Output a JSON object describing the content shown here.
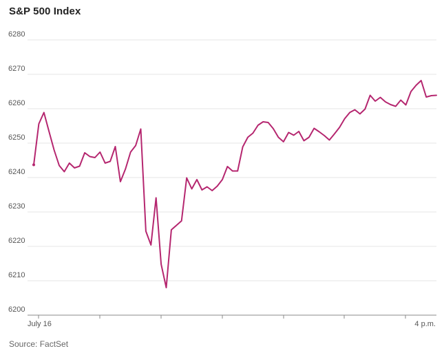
{
  "title": "S&P 500 Index",
  "source": "Source: FactSet",
  "colors": {
    "line": "#b5266f",
    "grid": "#e6e6e6",
    "axis": "#888888",
    "text": "#555555"
  },
  "chart_data": {
    "type": "line",
    "title": "S&P 500 Index",
    "xlabel": "",
    "ylabel": "",
    "ylim": [
      6200,
      6280
    ],
    "yticks": [
      6200,
      6210,
      6220,
      6230,
      6240,
      6250,
      6260,
      6270,
      6280
    ],
    "x_tick_labels": [
      "July 16",
      "4 p.m."
    ],
    "grid": true,
    "legend": "none",
    "series": [
      {
        "values": [
          6243.7,
          6255.6,
          6258.9,
          6253.4,
          6248,
          6243.5,
          6241.7,
          6244.2,
          6242.8,
          6243.3,
          6247.2,
          6246.1,
          6245.8,
          6247.4,
          6244.2,
          6244.7,
          6249,
          6238.8,
          6242.5,
          6247.4,
          6249.3,
          6254.1,
          6224.4,
          6220.4,
          6234.1,
          6214.8,
          6208,
          6224.8,
          6226.1,
          6227.4,
          6239.9,
          6236.7,
          6239.4,
          6236.4,
          6237.3,
          6236.2,
          6237.5,
          6239.4,
          6243.2,
          6241.9,
          6241.9,
          6248.9,
          6251.7,
          6252.9,
          6255.2,
          6256.2,
          6256,
          6254.2,
          6251.7,
          6250.4,
          6253.1,
          6252.3,
          6253.4,
          6250.7,
          6251.7,
          6254.3,
          6253.3,
          6252.2,
          6250.9,
          6252.7,
          6254.6,
          6257.1,
          6258.9,
          6259.7,
          6258.5,
          6259.9,
          6263.9,
          6262.2,
          6263.3,
          6262,
          6261.2,
          6260.7,
          6262.5,
          6261.1,
          6265,
          6266.8,
          6268.2,
          6263.4,
          6263.8,
          6263.9
        ]
      }
    ]
  }
}
